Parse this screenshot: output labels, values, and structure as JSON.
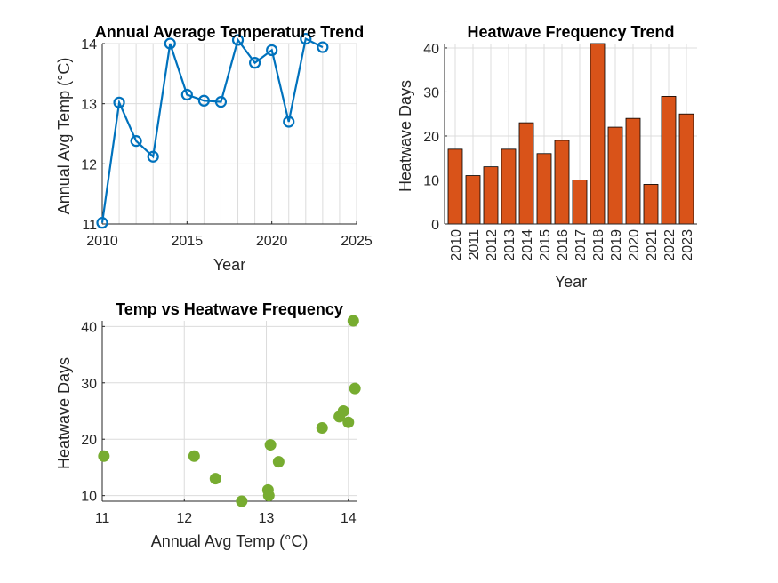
{
  "chart_data": [
    {
      "type": "line",
      "title": "Annual Average Temperature Trend",
      "xlabel": "Year",
      "ylabel": "Annual Avg Temp (°C)",
      "x": [
        2010,
        2011,
        2012,
        2013,
        2014,
        2015,
        2016,
        2017,
        2018,
        2019,
        2020,
        2021,
        2022,
        2023
      ],
      "values": [
        11.02,
        13.02,
        12.38,
        12.12,
        14.0,
        13.15,
        13.05,
        13.03,
        14.06,
        13.68,
        13.89,
        12.7,
        14.08,
        13.94
      ],
      "xlim": [
        2010,
        2025
      ],
      "ylim": [
        11,
        14
      ],
      "xticks": [
        2010,
        2015,
        2020,
        2025
      ],
      "yticks": [
        11,
        12,
        13,
        14
      ],
      "color": "#0072BD",
      "grid": true
    },
    {
      "type": "bar",
      "title": "Heatwave Frequency Trend",
      "xlabel": "Year",
      "ylabel": "Heatwave Days",
      "categories": [
        "2010",
        "2011",
        "2012",
        "2013",
        "2014",
        "2015",
        "2016",
        "2017",
        "2018",
        "2019",
        "2020",
        "2021",
        "2022",
        "2023"
      ],
      "values": [
        17,
        11,
        13,
        17,
        23,
        16,
        19,
        10,
        41,
        22,
        24,
        9,
        29,
        25
      ],
      "ylim": [
        0,
        41
      ],
      "yticks": [
        0,
        10,
        20,
        30,
        40
      ],
      "color": "#D95319",
      "grid": true
    },
    {
      "type": "scatter",
      "title": "Temp vs Heatwave Frequency",
      "xlabel": "Annual Avg Temp (°C)",
      "ylabel": "Heatwave Days",
      "x": [
        11.02,
        13.02,
        12.38,
        12.12,
        14.0,
        13.15,
        13.05,
        13.03,
        14.06,
        13.68,
        13.89,
        12.7,
        14.08,
        13.94
      ],
      "y": [
        17,
        11,
        13,
        17,
        23,
        16,
        19,
        10,
        41,
        22,
        24,
        9,
        29,
        25
      ],
      "xlim": [
        11,
        14.1
      ],
      "ylim": [
        9,
        41
      ],
      "xticks": [
        11,
        12,
        13,
        14
      ],
      "yticks": [
        10,
        20,
        30,
        40
      ],
      "color": "#77AC30",
      "grid": true
    }
  ]
}
